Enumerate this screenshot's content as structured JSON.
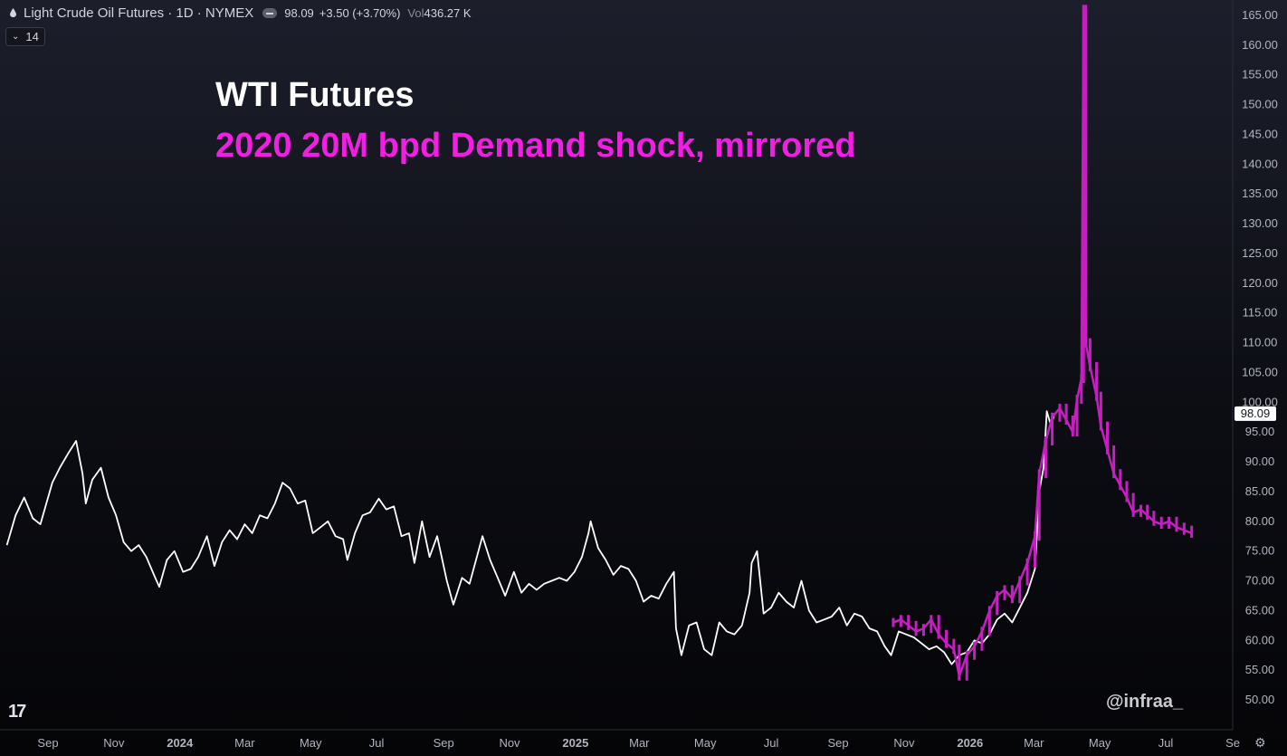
{
  "header": {
    "symbol": "Light Crude Oil Futures · 1D · NYMEX",
    "price": "98.09",
    "change": "+3.50 (+3.70%)",
    "vol_label": "Vol",
    "volume": "436.27 K",
    "indicator": "14"
  },
  "chart_data": {
    "type": "line",
    "title": "WTI Futures",
    "subtitle": "2020 20M bpd Demand shock, mirrored",
    "ylim": [
      45,
      168
    ],
    "yticks": [
      50,
      55,
      60,
      65,
      70,
      75,
      80,
      85,
      90,
      95,
      100,
      105,
      110,
      115,
      120,
      125,
      130,
      135,
      140,
      145,
      150,
      155,
      160,
      165
    ],
    "ytick_labels": [
      "50.00",
      "55.00",
      "60.00",
      "65.00",
      "70.00",
      "75.00",
      "80.00",
      "85.00",
      "90.00",
      "95.00",
      "100.00",
      "105.00",
      "110.00",
      "115.00",
      "120.00",
      "125.00",
      "130.00",
      "135.00",
      "140.00",
      "145.00",
      "150.00",
      "155.00",
      "160.00",
      "165.00"
    ],
    "xticks": [
      {
        "label": "Sep",
        "date": "2023-09-01",
        "bold": false
      },
      {
        "label": "Nov",
        "date": "2023-11-01",
        "bold": false
      },
      {
        "label": "2024",
        "date": "2024-01-01",
        "bold": true
      },
      {
        "label": "Mar",
        "date": "2024-03-01",
        "bold": false
      },
      {
        "label": "May",
        "date": "2024-05-01",
        "bold": false
      },
      {
        "label": "Jul",
        "date": "2024-07-01",
        "bold": false
      },
      {
        "label": "Sep",
        "date": "2024-09-01",
        "bold": false
      },
      {
        "label": "Nov",
        "date": "2024-11-01",
        "bold": false
      },
      {
        "label": "2025",
        "date": "2025-01-01",
        "bold": true
      },
      {
        "label": "Mar",
        "date": "2025-03-01",
        "bold": false
      },
      {
        "label": "May",
        "date": "2025-05-01",
        "bold": false
      },
      {
        "label": "Jul",
        "date": "2025-07-01",
        "bold": false
      },
      {
        "label": "Sep",
        "date": "2025-09-01",
        "bold": false
      },
      {
        "label": "Nov",
        "date": "2025-11-01",
        "bold": false
      },
      {
        "label": "2026",
        "date": "2026-01-01",
        "bold": true
      },
      {
        "label": "Mar",
        "date": "2026-03-01",
        "bold": false
      },
      {
        "label": "May",
        "date": "2026-05-01",
        "bold": false
      },
      {
        "label": "Jul",
        "date": "2026-07-01",
        "bold": false
      },
      {
        "label": "Se",
        "date": "2026-09-01",
        "bold": false
      }
    ],
    "last_price_label": "98.09",
    "series": [
      {
        "color": "#ffffff",
        "style": "line",
        "points": [
          [
            "2023-07-25",
            76.0
          ],
          [
            "2023-08-02",
            81.0
          ],
          [
            "2023-08-10",
            84.0
          ],
          [
            "2023-08-18",
            80.5
          ],
          [
            "2023-08-25",
            79.5
          ],
          [
            "2023-09-05",
            86.5
          ],
          [
            "2023-09-12",
            89.0
          ],
          [
            "2023-09-20",
            91.5
          ],
          [
            "2023-09-27",
            93.5
          ],
          [
            "2023-10-03",
            88.0
          ],
          [
            "2023-10-06",
            83.0
          ],
          [
            "2023-10-12",
            87.0
          ],
          [
            "2023-10-20",
            89.0
          ],
          [
            "2023-10-27",
            84.0
          ],
          [
            "2023-11-03",
            81.0
          ],
          [
            "2023-11-10",
            76.5
          ],
          [
            "2023-11-17",
            75.0
          ],
          [
            "2023-11-24",
            76.0
          ],
          [
            "2023-12-01",
            74.0
          ],
          [
            "2023-12-08",
            71.0
          ],
          [
            "2023-12-13",
            69.0
          ],
          [
            "2023-12-20",
            73.5
          ],
          [
            "2023-12-27",
            75.0
          ],
          [
            "2024-01-04",
            71.5
          ],
          [
            "2024-01-11",
            72.0
          ],
          [
            "2024-01-18",
            74.0
          ],
          [
            "2024-01-26",
            77.5
          ],
          [
            "2024-02-02",
            72.5
          ],
          [
            "2024-02-09",
            76.5
          ],
          [
            "2024-02-16",
            78.5
          ],
          [
            "2024-02-23",
            77.0
          ],
          [
            "2024-03-01",
            79.5
          ],
          [
            "2024-03-08",
            78.0
          ],
          [
            "2024-03-15",
            81.0
          ],
          [
            "2024-03-22",
            80.5
          ],
          [
            "2024-03-29",
            83.0
          ],
          [
            "2024-04-05",
            86.5
          ],
          [
            "2024-04-12",
            85.5
          ],
          [
            "2024-04-19",
            83.0
          ],
          [
            "2024-04-26",
            83.5
          ],
          [
            "2024-05-03",
            78.0
          ],
          [
            "2024-05-10",
            79.0
          ],
          [
            "2024-05-17",
            80.0
          ],
          [
            "2024-05-24",
            77.5
          ],
          [
            "2024-05-31",
            77.0
          ],
          [
            "2024-06-04",
            73.5
          ],
          [
            "2024-06-11",
            78.0
          ],
          [
            "2024-06-18",
            81.0
          ],
          [
            "2024-06-25",
            81.5
          ],
          [
            "2024-07-03",
            83.8
          ],
          [
            "2024-07-10",
            82.0
          ],
          [
            "2024-07-17",
            82.5
          ],
          [
            "2024-07-24",
            77.5
          ],
          [
            "2024-07-31",
            78.0
          ],
          [
            "2024-08-05",
            73.0
          ],
          [
            "2024-08-12",
            80.0
          ],
          [
            "2024-08-19",
            74.0
          ],
          [
            "2024-08-26",
            77.5
          ],
          [
            "2024-09-04",
            70.0
          ],
          [
            "2024-09-10",
            66.0
          ],
          [
            "2024-09-18",
            70.5
          ],
          [
            "2024-09-25",
            69.5
          ],
          [
            "2024-10-07",
            77.5
          ],
          [
            "2024-10-14",
            73.5
          ],
          [
            "2024-10-21",
            70.5
          ],
          [
            "2024-10-28",
            67.5
          ],
          [
            "2024-11-05",
            71.5
          ],
          [
            "2024-11-12",
            68.0
          ],
          [
            "2024-11-19",
            69.5
          ],
          [
            "2024-11-26",
            68.5
          ],
          [
            "2024-12-03",
            69.5
          ],
          [
            "2024-12-10",
            70.0
          ],
          [
            "2024-12-17",
            70.5
          ],
          [
            "2024-12-24",
            70.0
          ],
          [
            "2024-12-31",
            71.5
          ],
          [
            "2025-01-07",
            74.0
          ],
          [
            "2025-01-13",
            78.0
          ],
          [
            "2025-01-15",
            80.0
          ],
          [
            "2025-01-22",
            75.5
          ],
          [
            "2025-01-29",
            73.5
          ],
          [
            "2025-02-05",
            71.0
          ],
          [
            "2025-02-12",
            72.5
          ],
          [
            "2025-02-19",
            72.0
          ],
          [
            "2025-02-26",
            70.0
          ],
          [
            "2025-03-05",
            66.5
          ],
          [
            "2025-03-12",
            67.5
          ],
          [
            "2025-03-19",
            67.0
          ],
          [
            "2025-03-26",
            69.5
          ],
          [
            "2025-04-02",
            71.5
          ],
          [
            "2025-04-04",
            62.0
          ],
          [
            "2025-04-09",
            57.5
          ],
          [
            "2025-04-16",
            62.5
          ],
          [
            "2025-04-23",
            63.0
          ],
          [
            "2025-04-30",
            58.5
          ],
          [
            "2025-05-07",
            57.5
          ],
          [
            "2025-05-14",
            63.0
          ],
          [
            "2025-05-21",
            61.5
          ],
          [
            "2025-05-28",
            61.0
          ],
          [
            "2025-06-04",
            62.5
          ],
          [
            "2025-06-11",
            68.0
          ],
          [
            "2025-06-13",
            73.0
          ],
          [
            "2025-06-18",
            75.0
          ],
          [
            "2025-06-24",
            64.5
          ],
          [
            "2025-07-01",
            65.5
          ],
          [
            "2025-07-08",
            68.0
          ],
          [
            "2025-07-15",
            66.5
          ],
          [
            "2025-07-22",
            65.5
          ],
          [
            "2025-07-29",
            70.0
          ],
          [
            "2025-08-05",
            65.0
          ],
          [
            "2025-08-12",
            63.0
          ],
          [
            "2025-08-19",
            63.5
          ],
          [
            "2025-08-26",
            64.0
          ],
          [
            "2025-09-02",
            65.5
          ],
          [
            "2025-09-09",
            62.5
          ],
          [
            "2025-09-16",
            64.5
          ],
          [
            "2025-09-23",
            64.0
          ],
          [
            "2025-09-30",
            62.0
          ],
          [
            "2025-10-07",
            61.5
          ],
          [
            "2025-10-14",
            59.0
          ],
          [
            "2025-10-20",
            57.5
          ],
          [
            "2025-10-27",
            61.5
          ],
          [
            "2025-11-03",
            61.0
          ],
          [
            "2025-11-10",
            60.5
          ],
          [
            "2025-11-17",
            59.5
          ],
          [
            "2025-11-24",
            58.5
          ],
          [
            "2025-12-01",
            59.0
          ],
          [
            "2025-12-08",
            58.0
          ],
          [
            "2025-12-15",
            56.0
          ],
          [
            "2025-12-22",
            57.5
          ],
          [
            "2025-12-29",
            58.0
          ],
          [
            "2026-01-05",
            60.0
          ],
          [
            "2026-01-12",
            59.5
          ],
          [
            "2026-01-19",
            61.0
          ],
          [
            "2026-01-26",
            63.5
          ],
          [
            "2026-02-02",
            64.5
          ],
          [
            "2026-02-09",
            63.0
          ],
          [
            "2026-02-16",
            65.5
          ],
          [
            "2026-02-23",
            68.0
          ],
          [
            "2026-03-02",
            72.0
          ],
          [
            "2026-03-06",
            85.0
          ],
          [
            "2026-03-10",
            89.0
          ],
          [
            "2026-03-13",
            98.5
          ],
          [
            "2026-03-17",
            96.0
          ],
          [
            "2026-03-20",
            98.09
          ]
        ]
      },
      {
        "color": "#c41fbf",
        "style": "bars",
        "points": [
          [
            "2025-10-22",
            63.0
          ],
          [
            "2025-10-29",
            63.5
          ],
          [
            "2025-11-05",
            62.5
          ],
          [
            "2025-11-12",
            61.5
          ],
          [
            "2025-11-19",
            62.0
          ],
          [
            "2025-11-26",
            63.5
          ],
          [
            "2025-12-03",
            61.0
          ],
          [
            "2025-12-10",
            59.5
          ],
          [
            "2025-12-17",
            58.5
          ],
          [
            "2025-12-22",
            54.0
          ],
          [
            "2025-12-29",
            57.5
          ],
          [
            "2026-01-05",
            59.0
          ],
          [
            "2026-01-12",
            61.5
          ],
          [
            "2026-01-19",
            65.0
          ],
          [
            "2026-01-26",
            67.5
          ],
          [
            "2026-02-02",
            68.5
          ],
          [
            "2026-02-09",
            67.0
          ],
          [
            "2026-02-16",
            70.0
          ],
          [
            "2026-02-23",
            73.0
          ],
          [
            "2026-03-02",
            77.5
          ],
          [
            "2026-03-06",
            88.0
          ],
          [
            "2026-03-12",
            93.5
          ],
          [
            "2026-03-18",
            97.5
          ],
          [
            "2026-03-25",
            99.0
          ],
          [
            "2026-03-31",
            97.0
          ],
          [
            "2026-04-06",
            95.0
          ],
          [
            "2026-04-10",
            100.5
          ],
          [
            "2026-04-14",
            104.0
          ],
          [
            "2026-04-16",
            166.0
          ],
          [
            "2026-04-18",
            110.0
          ],
          [
            "2026-04-22",
            106.0
          ],
          [
            "2026-04-28",
            101.0
          ],
          [
            "2026-05-02",
            96.0
          ],
          [
            "2026-05-08",
            92.0
          ],
          [
            "2026-05-14",
            88.0
          ],
          [
            "2026-05-20",
            86.0
          ],
          [
            "2026-05-26",
            84.0
          ],
          [
            "2026-06-01",
            81.5
          ],
          [
            "2026-06-08",
            82.0
          ],
          [
            "2026-06-14",
            81.0
          ],
          [
            "2026-06-20",
            80.0
          ],
          [
            "2026-06-27",
            79.5
          ],
          [
            "2026-07-04",
            80.0
          ],
          [
            "2026-07-11",
            79.0
          ],
          [
            "2026-07-18",
            78.5
          ],
          [
            "2026-07-25",
            78.0
          ]
        ]
      }
    ]
  },
  "branding": {
    "watermark": "@infraa_",
    "logo": "17"
  }
}
